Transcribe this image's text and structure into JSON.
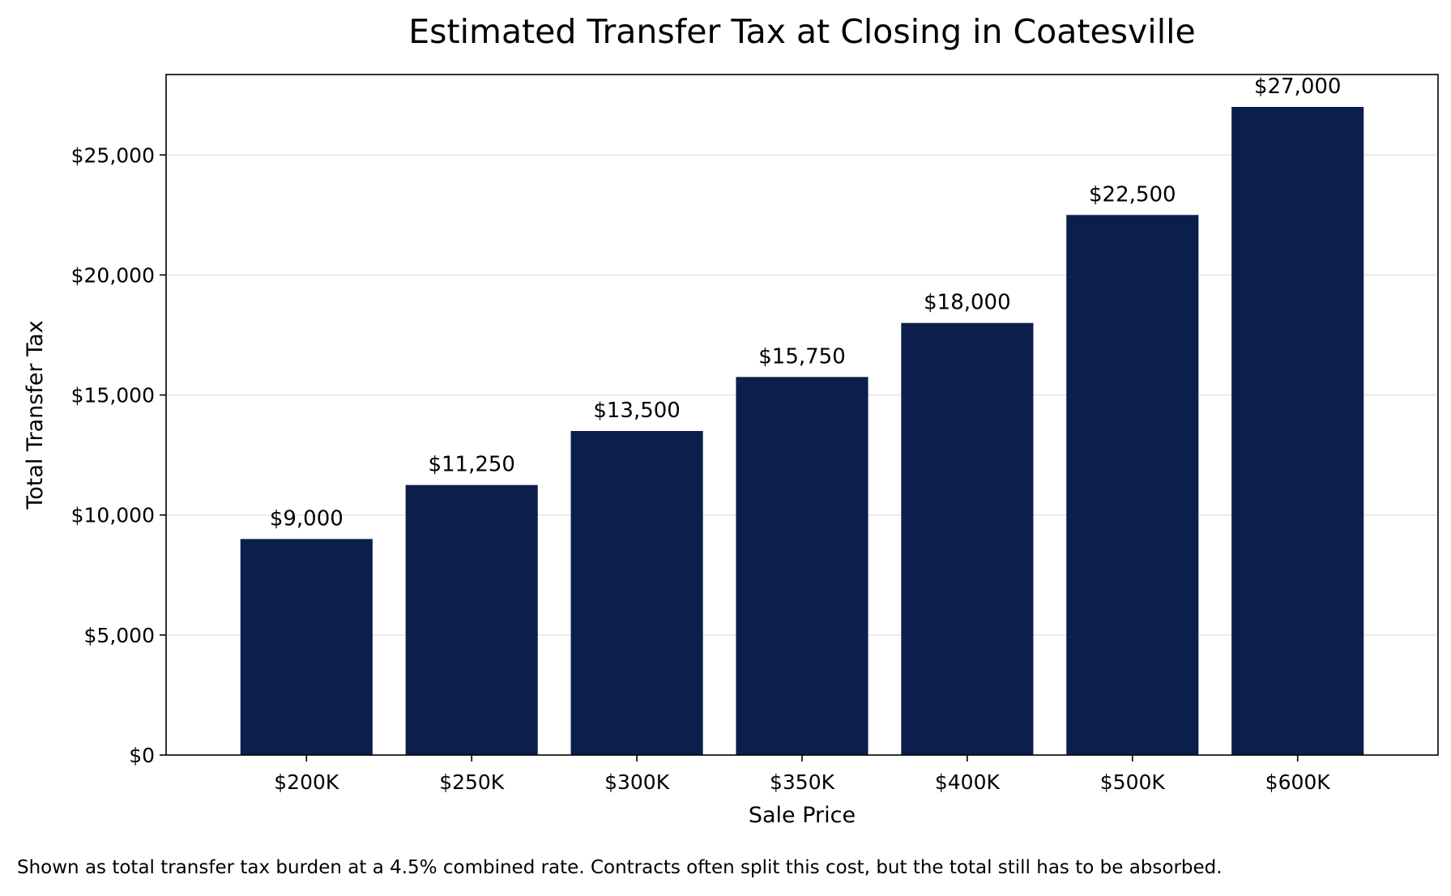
{
  "chart_data": {
    "type": "bar",
    "title": "Estimated Transfer Tax at Closing in Coatesville",
    "xlabel": "Sale Price",
    "ylabel": "Total Transfer Tax",
    "categories": [
      "$200K",
      "$250K",
      "$300K",
      "$350K",
      "$400K",
      "$500K",
      "$600K"
    ],
    "values": [
      9000,
      11250,
      13500,
      15750,
      18000,
      22500,
      27000
    ],
    "value_labels": [
      "$9,000",
      "$11,250",
      "$13,500",
      "$15,750",
      "$18,000",
      "$22,500",
      "$27,000"
    ],
    "ylim": [
      0,
      28350
    ],
    "yticks": [
      0,
      5000,
      10000,
      15000,
      20000,
      25000
    ],
    "ytick_labels": [
      "$0",
      "$5,000",
      "$10,000",
      "$15,000",
      "$20,000",
      "$25,000"
    ],
    "grid": "horizontal",
    "bar_color": "#0c1f4c",
    "grid_color": "#e6e6e6"
  },
  "footnote": "Shown as total transfer tax burden at a 4.5% combined rate. Contracts often split this cost, but the total still has to be absorbed."
}
